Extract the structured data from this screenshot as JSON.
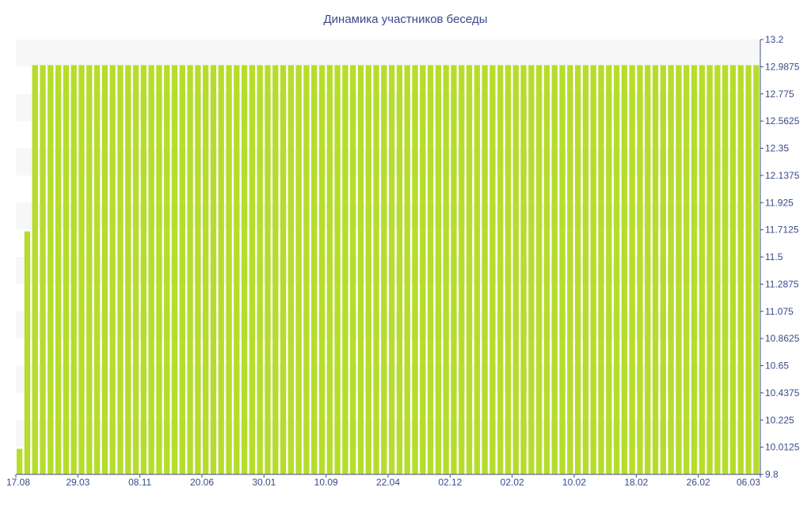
{
  "chart_data": {
    "type": "bar",
    "title": "Динамика участников беседы",
    "xlabel": "",
    "ylabel": "",
    "ylim": [
      9.8,
      13.2
    ],
    "y_ticks": [
      "13.2",
      "12.9875",
      "12.775",
      "12.5625",
      "12.35",
      "12.1375",
      "11.925",
      "11.7125",
      "11.5",
      "11.2875",
      "11.075",
      "10.8625",
      "10.65",
      "10.4375",
      "10.225",
      "10.0125",
      "9.8"
    ],
    "x_tick_labels": [
      "17.08",
      "29.03",
      "08.11",
      "20.06",
      "30.01",
      "10.09",
      "22.04",
      "02.12",
      "02.02",
      "10.02",
      "18.02",
      "26.02",
      "06.03"
    ],
    "y_axis_position": "right",
    "grid": "alternating horizontal bands",
    "bar_color": "#b5dd2b",
    "values": [
      10,
      11.7,
      13,
      13,
      13,
      13,
      13,
      13,
      13,
      13,
      13,
      13,
      13,
      13,
      13,
      13,
      13,
      13,
      13,
      13,
      13,
      13,
      13,
      13,
      13,
      13,
      13,
      13,
      13,
      13,
      13,
      13,
      13,
      13,
      13,
      13,
      13,
      13,
      13,
      13,
      13,
      13,
      13,
      13,
      13,
      13,
      13,
      13,
      13,
      13,
      13,
      13,
      13,
      13,
      13,
      13,
      13,
      13,
      13,
      13,
      13,
      13,
      13,
      13,
      13,
      13,
      13,
      13,
      13,
      13,
      13,
      13,
      13,
      13,
      13,
      13,
      13,
      13,
      13,
      13,
      13,
      13,
      13,
      13,
      13,
      13,
      13,
      13,
      13,
      13,
      13,
      13,
      13,
      13,
      13,
      13
    ]
  }
}
